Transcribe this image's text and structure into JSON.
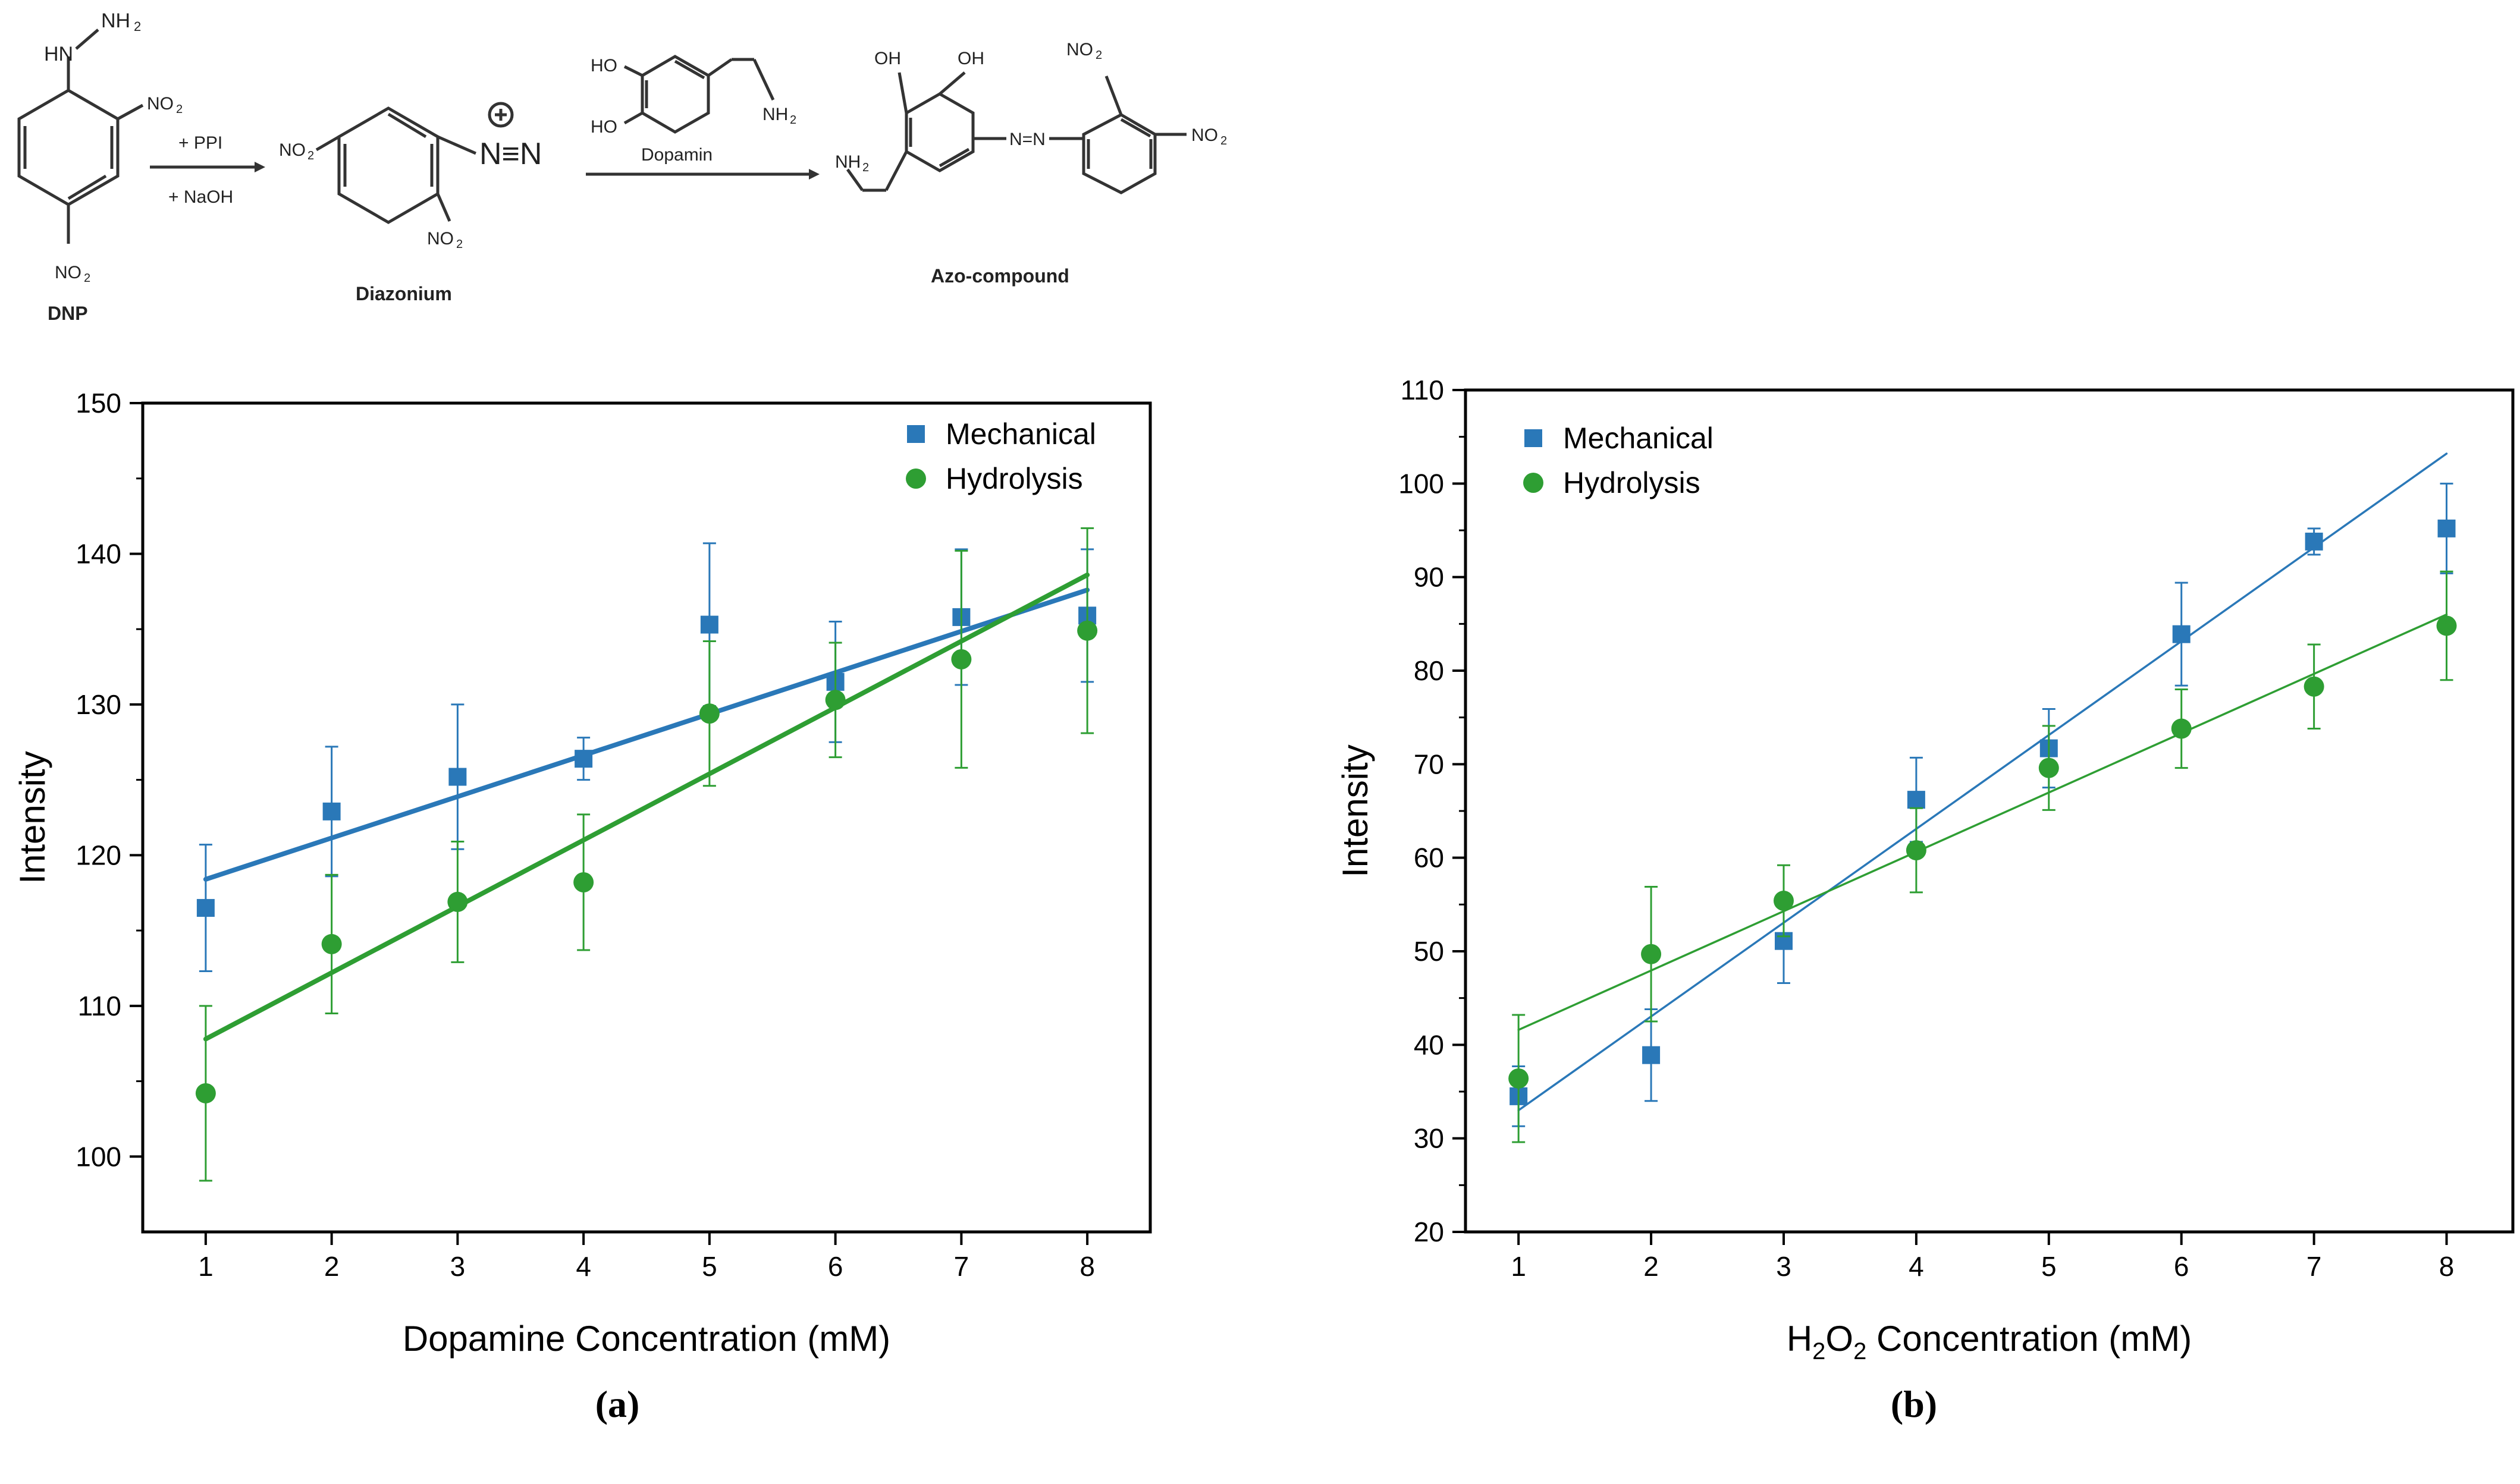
{
  "scheme": {
    "reactant_label": "DNP",
    "intermediate_label": "Diazonium",
    "product_label": "Azo-compound",
    "reagent_top": "+ PPI",
    "reagent_bottom": "+ NaOH",
    "reagent_dopamine": "Dopamin",
    "groups": {
      "hydrazine_nh": "HN",
      "hydrazine_nh2": "NH",
      "sub2": "2",
      "no": "NO",
      "nn": "N≡N",
      "plus": "+",
      "ho": "HO",
      "oh": "OH",
      "nh": "NH",
      "azo": "N=N"
    }
  },
  "panel_labels": {
    "a": "(a)",
    "b": "(b)"
  },
  "chart_data": [
    {
      "type": "scatter",
      "fit": "linear",
      "xlabel": "Dopamine Concentration (mM)",
      "ylabel": "Intensity",
      "xlim": [
        0.5,
        8.5
      ],
      "ylim": [
        95,
        150
      ],
      "xticks": [
        1,
        2,
        3,
        4,
        5,
        6,
        7,
        8
      ],
      "yticks": [
        100,
        110,
        120,
        130,
        140,
        150
      ],
      "legend_position": "top-right",
      "series": [
        {
          "name": "Mechanical",
          "marker": "square",
          "color": "#2a78b8",
          "x": [
            1,
            2,
            3,
            4,
            5,
            6,
            7,
            8
          ],
          "values": [
            116.5,
            122.9,
            125.2,
            126.4,
            135.3,
            131.5,
            135.8,
            135.9
          ],
          "errors": [
            4.2,
            4.3,
            4.8,
            1.4,
            5.4,
            4.0,
            4.5,
            4.4
          ],
          "fit_line": {
            "x": [
              1,
              8
            ],
            "y": [
              118.4,
              137.6
            ]
          }
        },
        {
          "name": "Hydrolysis",
          "marker": "circle",
          "color": "#2e9e33",
          "x": [
            1,
            2,
            3,
            4,
            5,
            6,
            7,
            8
          ],
          "values": [
            104.2,
            114.1,
            116.9,
            118.2,
            129.4,
            130.3,
            133.0,
            134.9
          ],
          "errors": [
            5.8,
            4.6,
            4.0,
            4.5,
            4.8,
            3.8,
            7.2,
            6.8
          ],
          "fit_line": {
            "x": [
              1,
              8
            ],
            "y": [
              107.8,
              138.6
            ]
          }
        }
      ]
    },
    {
      "type": "scatter",
      "fit": "linear",
      "xlabel": "H2O2 Concentration (mM)",
      "ylabel": "Intensity",
      "xlim": [
        0.6,
        8.5
      ],
      "ylim": [
        20,
        110
      ],
      "xticks": [
        1,
        2,
        3,
        4,
        5,
        6,
        7,
        8
      ],
      "yticks": [
        20,
        30,
        40,
        50,
        60,
        70,
        80,
        90,
        100,
        110
      ],
      "legend_position": "top-left",
      "series": [
        {
          "name": "Mechanical",
          "marker": "square",
          "color": "#2a78b8",
          "x": [
            1,
            2,
            3,
            4,
            5,
            6,
            7,
            8
          ],
          "values": [
            34.5,
            38.9,
            51.1,
            66.2,
            71.7,
            83.9,
            93.8,
            95.2
          ],
          "errors": [
            3.2,
            4.9,
            4.5,
            4.5,
            4.2,
            5.5,
            1.4,
            4.8
          ],
          "fit_line": {
            "x": [
              1,
              8
            ],
            "y": [
              33.0,
              103.2
            ]
          }
        },
        {
          "name": "Hydrolysis",
          "marker": "circle",
          "color": "#2e9e33",
          "x": [
            1,
            2,
            3,
            4,
            5,
            6,
            7,
            8
          ],
          "values": [
            36.4,
            49.7,
            55.4,
            60.8,
            69.6,
            73.8,
            78.3,
            84.8
          ],
          "errors": [
            6.8,
            7.2,
            3.8,
            4.5,
            4.5,
            4.2,
            4.5,
            5.8
          ],
          "fit_line": {
            "x": [
              1,
              8
            ],
            "y": [
              41.6,
              86.0
            ]
          }
        }
      ]
    }
  ]
}
